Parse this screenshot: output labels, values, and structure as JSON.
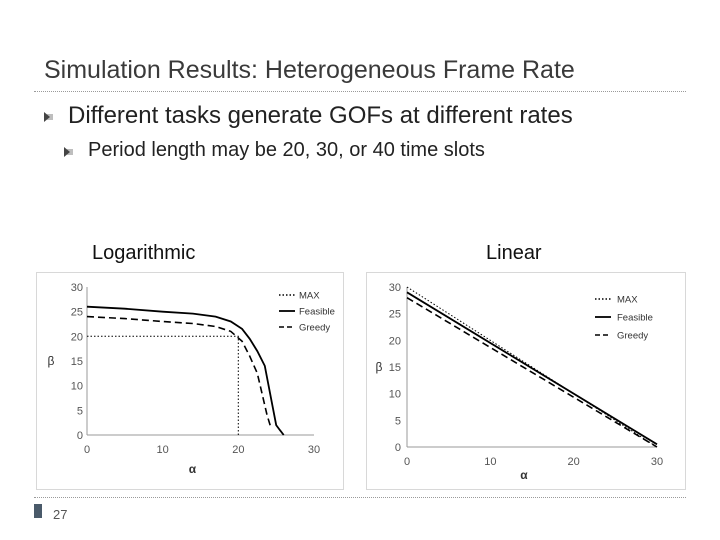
{
  "slide": {
    "title": "Simulation Results: Heterogeneous Frame Rate",
    "bullet_main": "Different tasks generate GOFs at different rates",
    "bullet_sub": "Period length may be 20, 30, or 40 time slots",
    "page_number": "27"
  },
  "chart_data": [
    {
      "type": "line",
      "label": "Logarithmic",
      "xlabel": "α",
      "ylabel": "β",
      "xlim": [
        0,
        30
      ],
      "ylim": [
        0,
        30
      ],
      "xticks": [
        "0",
        "10",
        "20",
        "30"
      ],
      "yticks": [
        "0",
        "5",
        "10",
        "15",
        "20",
        "25",
        "30"
      ],
      "legend_position": "top-right",
      "grid": false,
      "series": [
        {
          "name": "MAX",
          "style": "dotted",
          "x": [
            0,
            20,
            20
          ],
          "y": [
            20,
            20,
            0
          ]
        },
        {
          "name": "Feasible",
          "style": "solid",
          "x": [
            0,
            5,
            10,
            14,
            17,
            19,
            20.5,
            21.5,
            22.5,
            23.5,
            24,
            24.5,
            25,
            25.5,
            26
          ],
          "y": [
            26,
            25.6,
            25,
            24.6,
            24,
            23,
            21.5,
            19.5,
            17,
            14,
            10,
            6,
            2,
            1,
            0
          ]
        },
        {
          "name": "Greedy",
          "style": "dashed",
          "x": [
            0,
            5,
            10,
            14,
            17,
            19,
            20.5,
            21.5,
            22.5,
            23.2,
            23.8,
            24.3
          ],
          "y": [
            24,
            23.6,
            23,
            22.6,
            22,
            21,
            19,
            16,
            12.5,
            8,
            4,
            1.5
          ]
        }
      ],
      "colors": {
        "line": "#000000",
        "axis": "#999999",
        "tick_text": "#555555"
      }
    },
    {
      "type": "line",
      "label": "Linear",
      "xlabel": "α",
      "ylabel": "β",
      "xlim": [
        0,
        30
      ],
      "ylim": [
        0,
        30
      ],
      "xticks": [
        "0",
        "10",
        "20",
        "30"
      ],
      "yticks": [
        "0",
        "5",
        "10",
        "15",
        "20",
        "25",
        "30"
      ],
      "legend_position": "top-right",
      "grid": false,
      "series": [
        {
          "name": "MAX",
          "style": "dotted",
          "x": [
            0,
            30
          ],
          "y": [
            30,
            0
          ]
        },
        {
          "name": "Feasible",
          "style": "solid",
          "x": [
            0,
            30
          ],
          "y": [
            29,
            0.5
          ]
        },
        {
          "name": "Greedy",
          "style": "dashed",
          "x": [
            0,
            30
          ],
          "y": [
            28,
            0
          ]
        }
      ],
      "colors": {
        "line": "#000000",
        "axis": "#999999",
        "tick_text": "#555555"
      }
    }
  ]
}
